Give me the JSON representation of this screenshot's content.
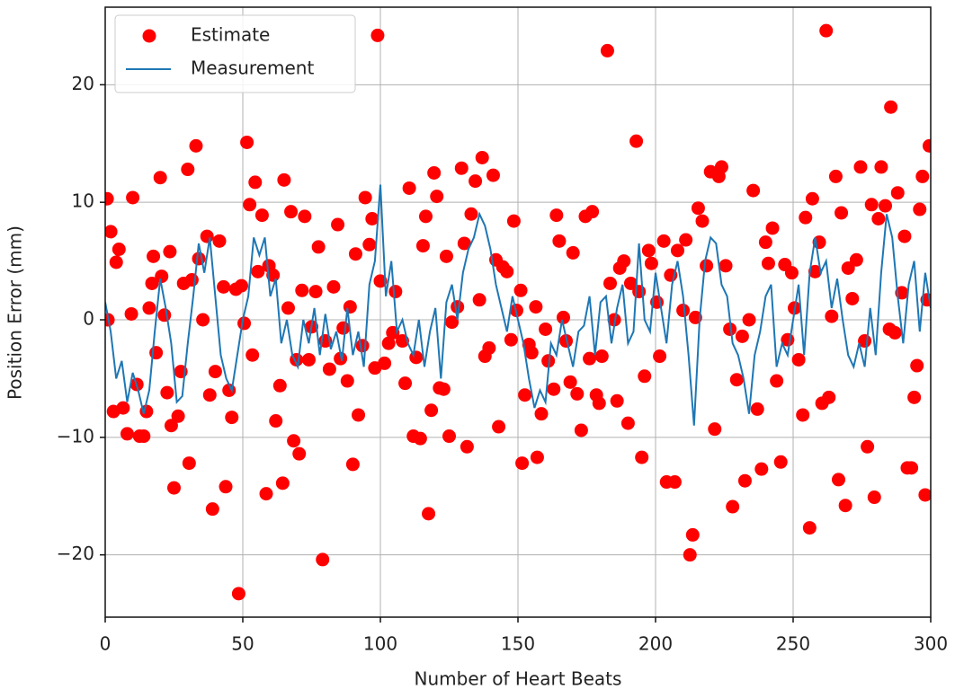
{
  "chart_data": {
    "type": "scatter",
    "xlabel": "Number of Heart Beats",
    "ylabel": "Position Error (mm)",
    "xlim": [
      0,
      300
    ],
    "ylim": [
      -25.3,
      26.6
    ],
    "xticks": [
      0,
      50,
      100,
      150,
      200,
      250,
      300
    ],
    "yticks": [
      {
        "value": -20,
        "label": "−20"
      },
      {
        "value": -10,
        "label": "−10"
      },
      0,
      10,
      20
    ],
    "grid": true,
    "legend": "upper-left",
    "series": [
      {
        "name": "Estimate",
        "type": "scatter",
        "color": "#ff0000",
        "x": [
          0.7,
          1,
          2,
          3,
          4,
          5,
          6.5,
          8,
          9.5,
          10,
          11.5,
          12.5,
          14,
          15,
          16,
          17,
          17.5,
          18.5,
          20,
          20.5,
          21.5,
          22.5,
          23.5,
          24,
          25,
          26.5,
          27.5,
          28.5,
          30,
          30.5,
          31.5,
          33,
          34,
          35.5,
          37,
          38,
          39,
          40,
          41.5,
          43,
          43.8,
          45,
          46,
          47.5,
          48.5,
          49.5,
          50.5,
          51.5,
          52.5,
          53.5,
          54.5,
          55.5,
          57,
          58.5,
          59.5,
          61,
          62,
          63.5,
          64.5,
          65,
          66.5,
          67.5,
          68.5,
          69.5,
          70.5,
          71.5,
          72.5,
          74,
          75,
          76.5,
          77.5,
          79,
          80,
          81.5,
          83,
          84.5,
          85.5,
          86.5,
          88,
          89,
          90,
          91,
          92,
          93.5,
          94.5,
          96,
          97,
          98,
          99,
          100,
          101.5,
          103,
          104.5,
          105.5,
          108,
          109,
          110.5,
          112,
          113,
          114.5,
          115.5,
          116.5,
          117.5,
          118.5,
          119.5,
          120.5,
          121.5,
          123,
          124,
          125,
          126,
          128,
          129.5,
          130.5,
          131.5,
          133,
          134.5,
          136,
          137,
          138,
          139.5,
          141,
          142,
          143,
          144.5,
          146,
          147.5,
          148.5,
          149.5,
          151,
          151.5,
          152.5,
          154,
          155,
          156.5,
          157,
          158.5,
          160,
          161,
          163,
          164,
          165,
          166.5,
          167.5,
          169,
          170,
          171.5,
          173,
          174.5,
          176,
          177,
          178.5,
          179.5,
          180.5,
          182.5,
          183.5,
          185,
          186,
          187,
          188.5,
          190,
          191,
          193,
          194,
          195,
          196,
          197.5,
          198.5,
          200.5,
          201.5,
          203,
          204,
          205.5,
          207,
          208,
          210,
          211,
          212.5,
          213.5,
          214.5,
          215.5,
          217,
          218.5,
          220,
          221.5,
          223,
          224,
          225.5,
          227,
          228,
          229.5,
          231.5,
          232.5,
          234,
          235.5,
          237,
          238.5,
          240,
          241,
          242.5,
          244,
          245.5,
          247,
          248,
          249.5,
          250.5,
          252,
          253.5,
          254.5,
          256,
          257,
          258,
          259.5,
          260.5,
          262,
          263,
          264,
          265.5,
          266.5,
          267.5,
          269,
          270,
          271.5,
          273,
          274.5,
          276,
          277,
          278.5,
          279.5,
          281,
          282,
          283.5,
          285,
          285.5,
          287,
          288,
          289.5,
          290.5,
          291.5,
          293,
          294,
          295,
          296,
          297,
          298,
          298.7,
          299.5
        ],
        "values": [
          10.3,
          0,
          7.5,
          -7.8,
          4.9,
          6,
          -7.5,
          -9.7,
          0.5,
          10.4,
          -5.5,
          -9.9,
          -9.9,
          -7.8,
          1,
          3.1,
          5.4,
          -2.8,
          12.1,
          3.7,
          0.4,
          -6.2,
          5.8,
          -9,
          -14.3,
          -8.2,
          -4.4,
          3.1,
          12.8,
          -12.2,
          3.4,
          14.8,
          5.2,
          0,
          7.1,
          -6.4,
          -16.1,
          -4.4,
          6.7,
          2.8,
          -14.2,
          -6,
          -8.3,
          2.6,
          -23.3,
          2.9,
          -0.3,
          15.1,
          9.8,
          -3,
          11.7,
          4.1,
          8.9,
          -14.8,
          4.6,
          3.8,
          -8.6,
          -5.6,
          -13.9,
          11.9,
          1,
          9.2,
          -10.3,
          -3.4,
          -11.4,
          2.5,
          8.8,
          -3.4,
          -0.6,
          2.4,
          6.2,
          -20.4,
          -1.8,
          -4.2,
          2.8,
          8.1,
          -3.3,
          -0.7,
          -5.2,
          1.1,
          -12.3,
          5.6,
          -8.1,
          -2.2,
          10.4,
          6.4,
          8.6,
          -4.1,
          24.2,
          3.3,
          -3.7,
          -2,
          -1.1,
          2.4,
          -1.8,
          -5.4,
          11.2,
          -9.9,
          -3.2,
          -10.1,
          6.3,
          8.8,
          -16.5,
          -7.7,
          12.5,
          10.5,
          -5.8,
          -5.9,
          5.4,
          -9.9,
          -0.2,
          1.1,
          12.9,
          6.5,
          -10.8,
          9,
          11.8,
          1.7,
          13.8,
          -3.1,
          -2.4,
          12.3,
          5.1,
          -9.1,
          4.5,
          4.1,
          -1.7,
          8.4,
          0.8,
          2.5,
          -12.2,
          -6.4,
          -2.1,
          -2.8,
          1.1,
          -11.7,
          -8,
          -0.8,
          -3.5,
          -5.9,
          8.9,
          6.7,
          0.2,
          -1.8,
          -5.3,
          5.7,
          -6.3,
          -9.4,
          8.8,
          -3.3,
          9.2,
          -6.4,
          -7.1,
          -3.1,
          22.9,
          3.1,
          0,
          -6.9,
          4.4,
          5,
          -8.8,
          3.1,
          15.2,
          2.4,
          -11.7,
          -4.8,
          5.9,
          4.8,
          1.5,
          -3.1,
          6.7,
          -13.8,
          3.8,
          -13.8,
          5.9,
          0.8,
          6.8,
          -20,
          -18.3,
          0.2,
          9.5,
          8.4,
          4.6,
          12.6,
          -9.3,
          12.2,
          13,
          4.6,
          -0.8,
          -15.9,
          -5.1,
          -1.4,
          -13.7,
          0,
          11,
          -7.6,
          -12.7,
          6.6,
          4.8,
          7.8,
          -5.2,
          -12.1,
          4.7,
          -1.7,
          4,
          1,
          -3.4,
          -8.1,
          8.7,
          -17.7,
          10.3,
          4.1,
          6.6,
          -7.1,
          24.6,
          -6.6,
          0.3,
          12.2,
          -13.6,
          9.1,
          -15.8,
          4.4,
          1.8,
          5.1,
          13,
          -1.8,
          -10.8,
          9.8,
          -15.1,
          8.6,
          13,
          9.7,
          -0.8,
          18.1,
          -1.1,
          10.8,
          2.3,
          7.1,
          -12.6,
          -12.6,
          -6.6,
          -3.9,
          9.4,
          12.2,
          -14.9,
          1.7,
          14.8
        ]
      },
      {
        "name": "Measurement",
        "type": "line",
        "color": "#1f77b4",
        "x": [
          0,
          2,
          4,
          6,
          8,
          10,
          12,
          14,
          16,
          18,
          20,
          22,
          24,
          26,
          28,
          30,
          32,
          34,
          36,
          38,
          40,
          42,
          44,
          46,
          48,
          50,
          52,
          54,
          56,
          58,
          60,
          62,
          64,
          66,
          68,
          70,
          72,
          74,
          76,
          78,
          80,
          82,
          84,
          86,
          88,
          90,
          92,
          94,
          96,
          98,
          100,
          102,
          104,
          106,
          108,
          110,
          112,
          114,
          116,
          118,
          120,
          122,
          124,
          126,
          128,
          130,
          132,
          134,
          136,
          138,
          140,
          142,
          144,
          146,
          148,
          150,
          152,
          154,
          156,
          158,
          160,
          162,
          164,
          166,
          168,
          170,
          172,
          174,
          176,
          178,
          180,
          182,
          184,
          186,
          188,
          190,
          192,
          194,
          196,
          198,
          200,
          202,
          204,
          206,
          208,
          210,
          212,
          214,
          216,
          218,
          220,
          222,
          224,
          226,
          228,
          230,
          232,
          234,
          236,
          238,
          240,
          242,
          244,
          246,
          248,
          250,
          252,
          254,
          256,
          258,
          260,
          262,
          264,
          266,
          268,
          270,
          272,
          274,
          276,
          278,
          280,
          282,
          284,
          286,
          288,
          290,
          292,
          294,
          296,
          298,
          300
        ],
        "values": [
          1.5,
          -1,
          -5,
          -3.5,
          -7,
          -4.5,
          -6,
          -8,
          -6,
          -1,
          3.5,
          1,
          -2,
          -7,
          -6.5,
          -2,
          2,
          6.5,
          4,
          7,
          2,
          -3,
          -5,
          -6,
          -3,
          0,
          2,
          7,
          5.5,
          7,
          2,
          3.5,
          -2,
          0,
          -3,
          -4,
          0,
          -2,
          1,
          -3,
          0.5,
          -2.5,
          -1,
          -3.5,
          1,
          -3,
          -1,
          -4,
          3,
          5,
          11.5,
          2,
          5,
          -1,
          0,
          -2,
          -3,
          0,
          -4,
          -1,
          1,
          -5,
          1.5,
          3,
          0,
          4,
          6,
          7,
          9,
          8,
          6,
          3,
          1,
          -1,
          2,
          0,
          -2,
          -5,
          -7.5,
          -6,
          -7,
          -2,
          -3,
          0,
          -2,
          -4,
          -1,
          -0.5,
          2,
          -3,
          1.5,
          2,
          -2,
          1,
          3,
          -2,
          -1,
          6.5,
          0,
          -1,
          4,
          1,
          -2,
          3,
          5,
          2,
          -3,
          -9,
          0,
          5,
          7,
          6.5,
          3,
          2,
          -2,
          -3,
          -5,
          -8,
          -3,
          -1,
          2,
          3,
          -4,
          -2,
          -3,
          0,
          3,
          -3,
          4,
          7,
          4,
          5,
          1,
          3.5,
          0,
          -3,
          -4,
          -2,
          -4,
          1,
          -3,
          4,
          9,
          7,
          2,
          -2,
          3,
          5,
          -1,
          4,
          1
        ]
      }
    ]
  }
}
